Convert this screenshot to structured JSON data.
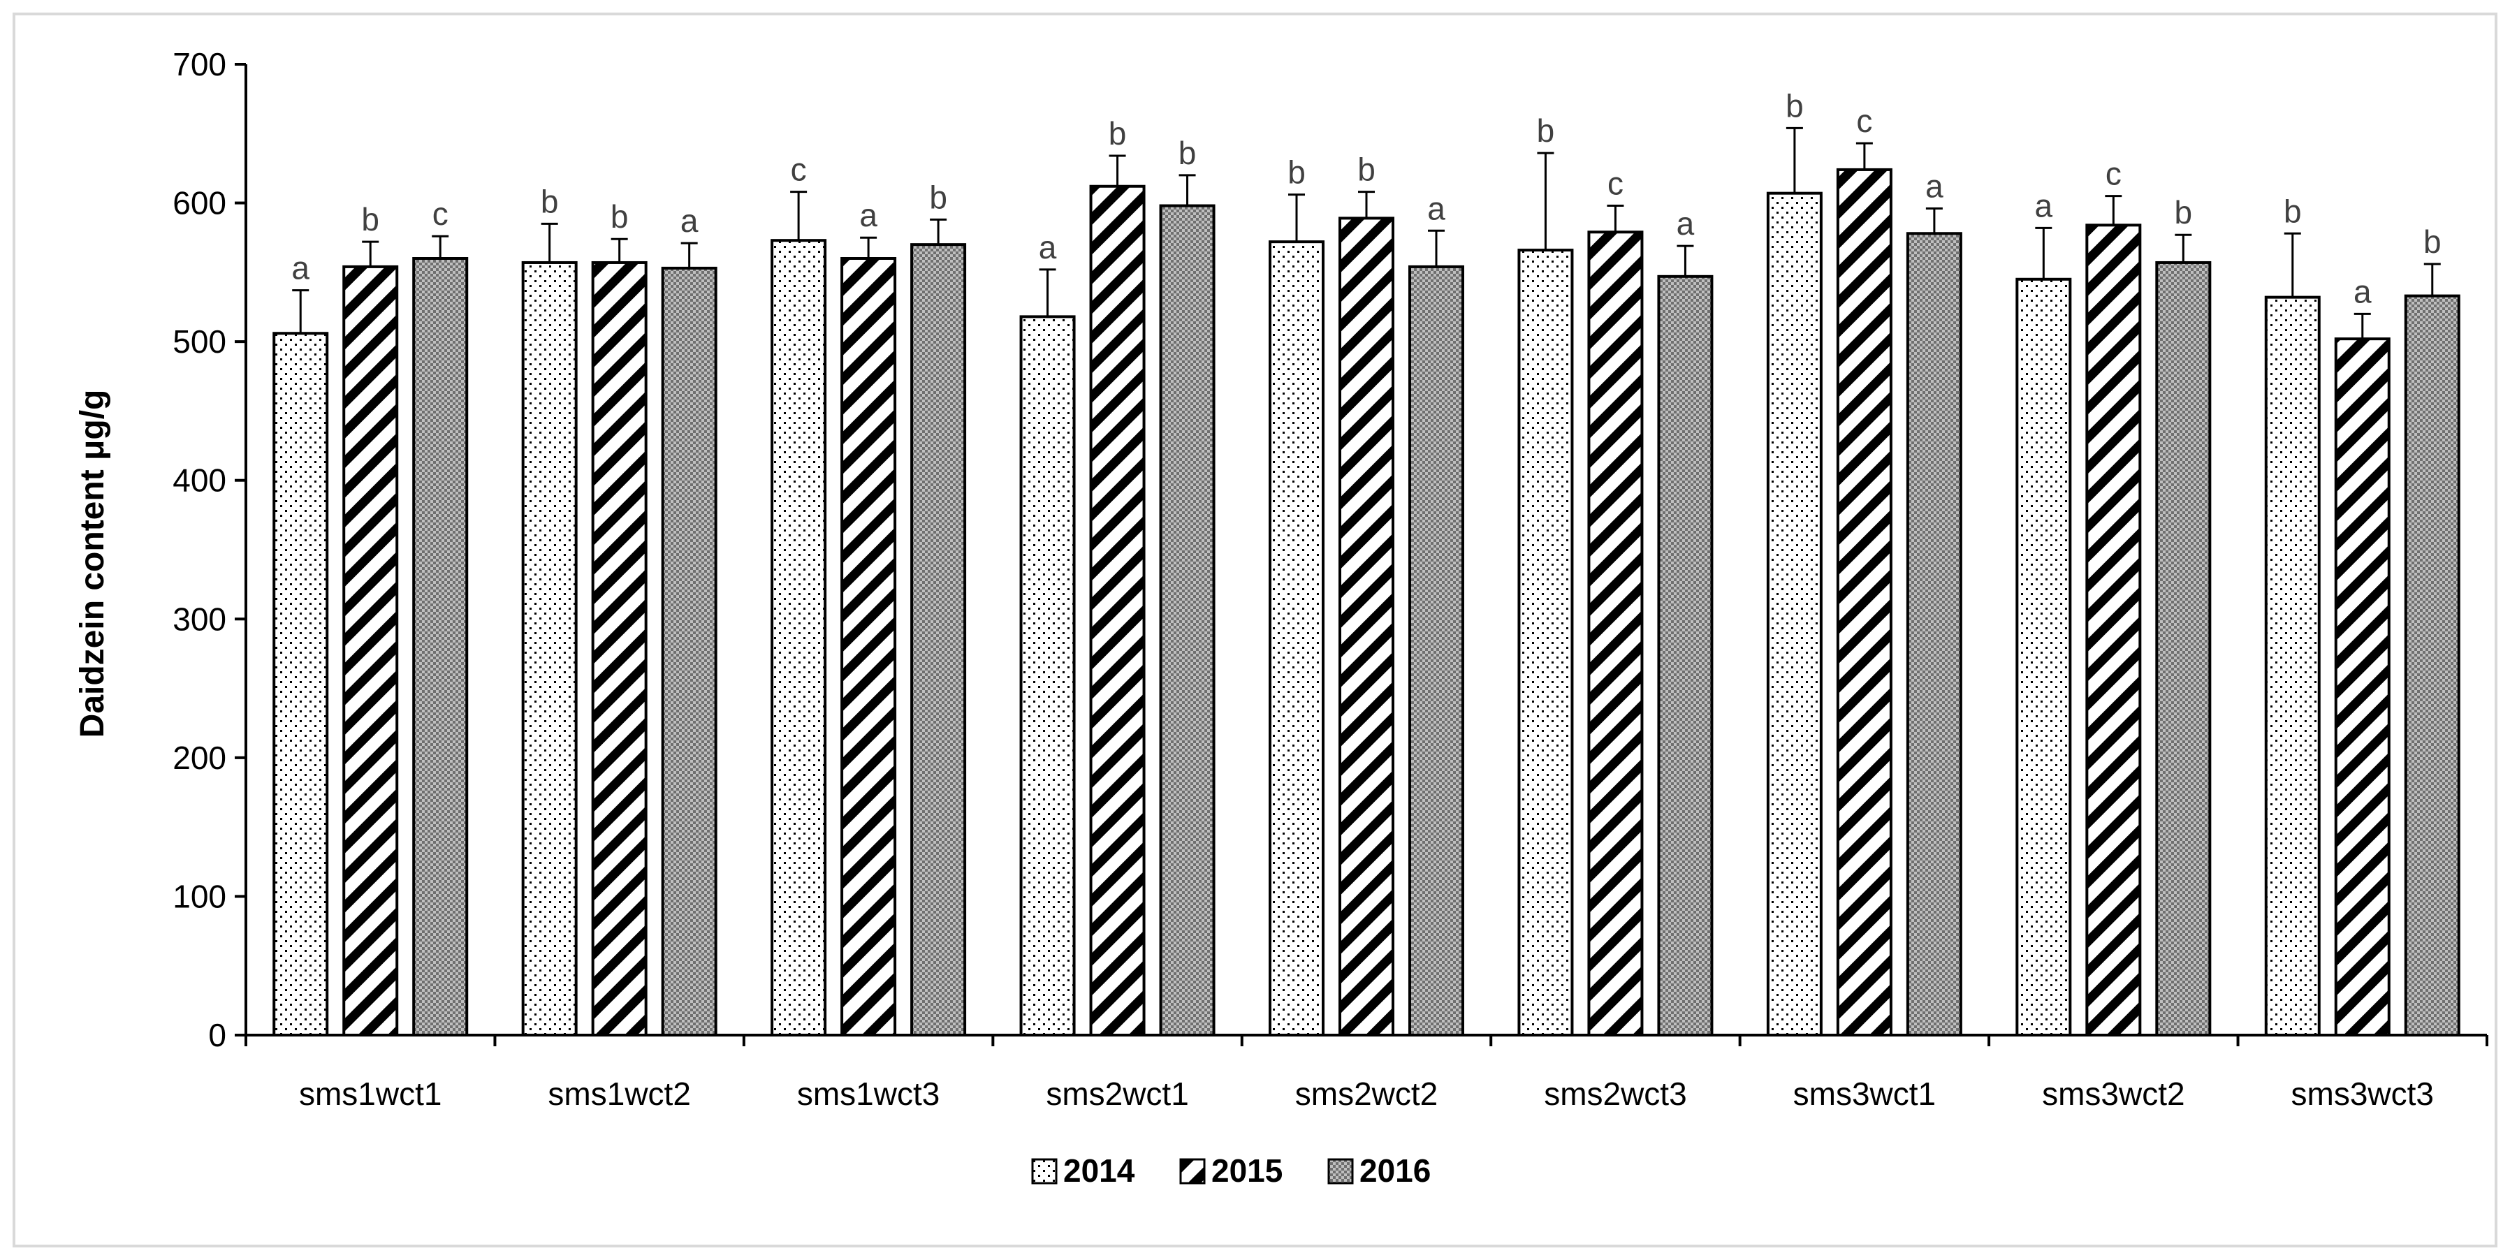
{
  "chart_data": {
    "type": "bar",
    "ylabel": "Daidzein content μg/g",
    "xlabel": "",
    "ylim": [
      0,
      700
    ],
    "yticks": [
      0,
      100,
      200,
      300,
      400,
      500,
      600,
      700
    ],
    "grid": false,
    "legend_position": "bottom-center",
    "categories": [
      "sms1wct1",
      "sms1wct2",
      "sms1wct3",
      "sms2wct1",
      "sms2wct2",
      "sms2wct3",
      "sms3wct1",
      "sms3wct2",
      "sms3wct3"
    ],
    "series": [
      {
        "name": "2014",
        "pattern": "dots",
        "values": [
          506,
          557,
          573,
          518,
          572,
          566,
          607,
          545,
          532
        ],
        "errors": [
          31,
          28,
          35,
          34,
          34,
          70,
          47,
          37,
          46
        ],
        "letters": [
          "a",
          "b",
          "c",
          "a",
          "b",
          "b",
          "b",
          "a",
          "b"
        ]
      },
      {
        "name": "2015",
        "pattern": "diagonal",
        "values": [
          554,
          557,
          560,
          612,
          589,
          579,
          624,
          584,
          502
        ],
        "errors": [
          18,
          17,
          15,
          22,
          19,
          19,
          19,
          21,
          18
        ],
        "letters": [
          "b",
          "b",
          "a",
          "b",
          "b",
          "c",
          "c",
          "c",
          "a"
        ]
      },
      {
        "name": "2016",
        "pattern": "checker",
        "values": [
          560,
          553,
          570,
          598,
          554,
          547,
          578,
          557,
          533
        ],
        "errors": [
          16,
          18,
          18,
          22,
          26,
          22,
          18,
          20,
          23
        ],
        "letters": [
          "c",
          "a",
          "b",
          "b",
          "a",
          "a",
          "a",
          "b",
          "b"
        ]
      }
    ],
    "colors": {
      "axis": "#000000",
      "bar_stroke": "#000000",
      "frame": "#d9d9d9",
      "checker_dark": "#7f7f7f",
      "checker_light": "#bfbfbf"
    }
  }
}
